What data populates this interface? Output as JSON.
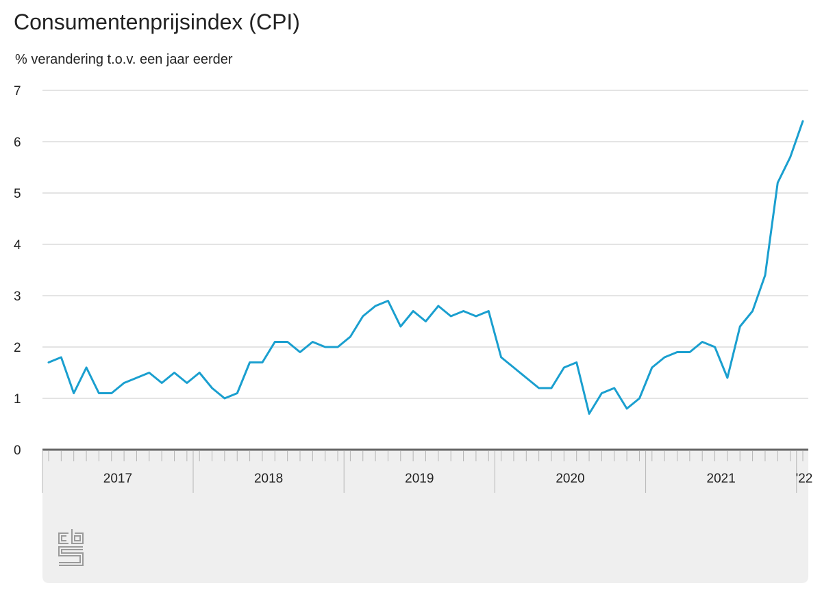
{
  "header": {
    "title": "Consumentenprijsindex (CPI)",
    "subtitle": "% verandering t.o.v. een jaar eerder"
  },
  "colors": {
    "line": "#1a9fcf",
    "grid": "#c8c8c8",
    "axis": "#666666",
    "panel": "#efefef",
    "logo": "#9a9a9a"
  },
  "logo": {
    "icon": "cbs-logo-icon"
  },
  "chart_data": {
    "type": "line",
    "title": "Consumentenprijsindex (CPI)",
    "subtitle": "% verandering t.o.v. een jaar eerder",
    "xlabel": "",
    "ylabel": "",
    "ylim": [
      0,
      7
    ],
    "yticks": [
      0,
      1,
      2,
      3,
      4,
      5,
      6,
      7
    ],
    "grid": true,
    "x_start": "2017-01",
    "x_end": "2022-01",
    "year_labels": [
      {
        "label": "2017",
        "year": 2017
      },
      {
        "label": "2018",
        "year": 2018
      },
      {
        "label": "2019",
        "year": 2019
      },
      {
        "label": "2020",
        "year": 2020
      },
      {
        "label": "2021",
        "year": 2021
      },
      {
        "label": "'22",
        "year": 2022
      }
    ],
    "series": [
      {
        "values": [
          1.7,
          1.8,
          1.1,
          1.6,
          1.1,
          1.1,
          1.3,
          1.4,
          1.5,
          1.3,
          1.5,
          1.3,
          1.5,
          1.2,
          1.0,
          1.1,
          1.7,
          1.7,
          2.1,
          2.1,
          1.9,
          2.1,
          2.0,
          2.0,
          2.2,
          2.6,
          2.8,
          2.9,
          2.4,
          2.7,
          2.5,
          2.8,
          2.6,
          2.7,
          2.6,
          2.7,
          1.8,
          1.6,
          1.4,
          1.2,
          1.2,
          1.6,
          1.7,
          0.7,
          1.1,
          1.2,
          0.8,
          1.0,
          1.6,
          1.8,
          1.9,
          1.9,
          2.1,
          2.0,
          1.4,
          2.4,
          2.7,
          3.4,
          5.2,
          5.7,
          6.4
        ]
      }
    ]
  }
}
